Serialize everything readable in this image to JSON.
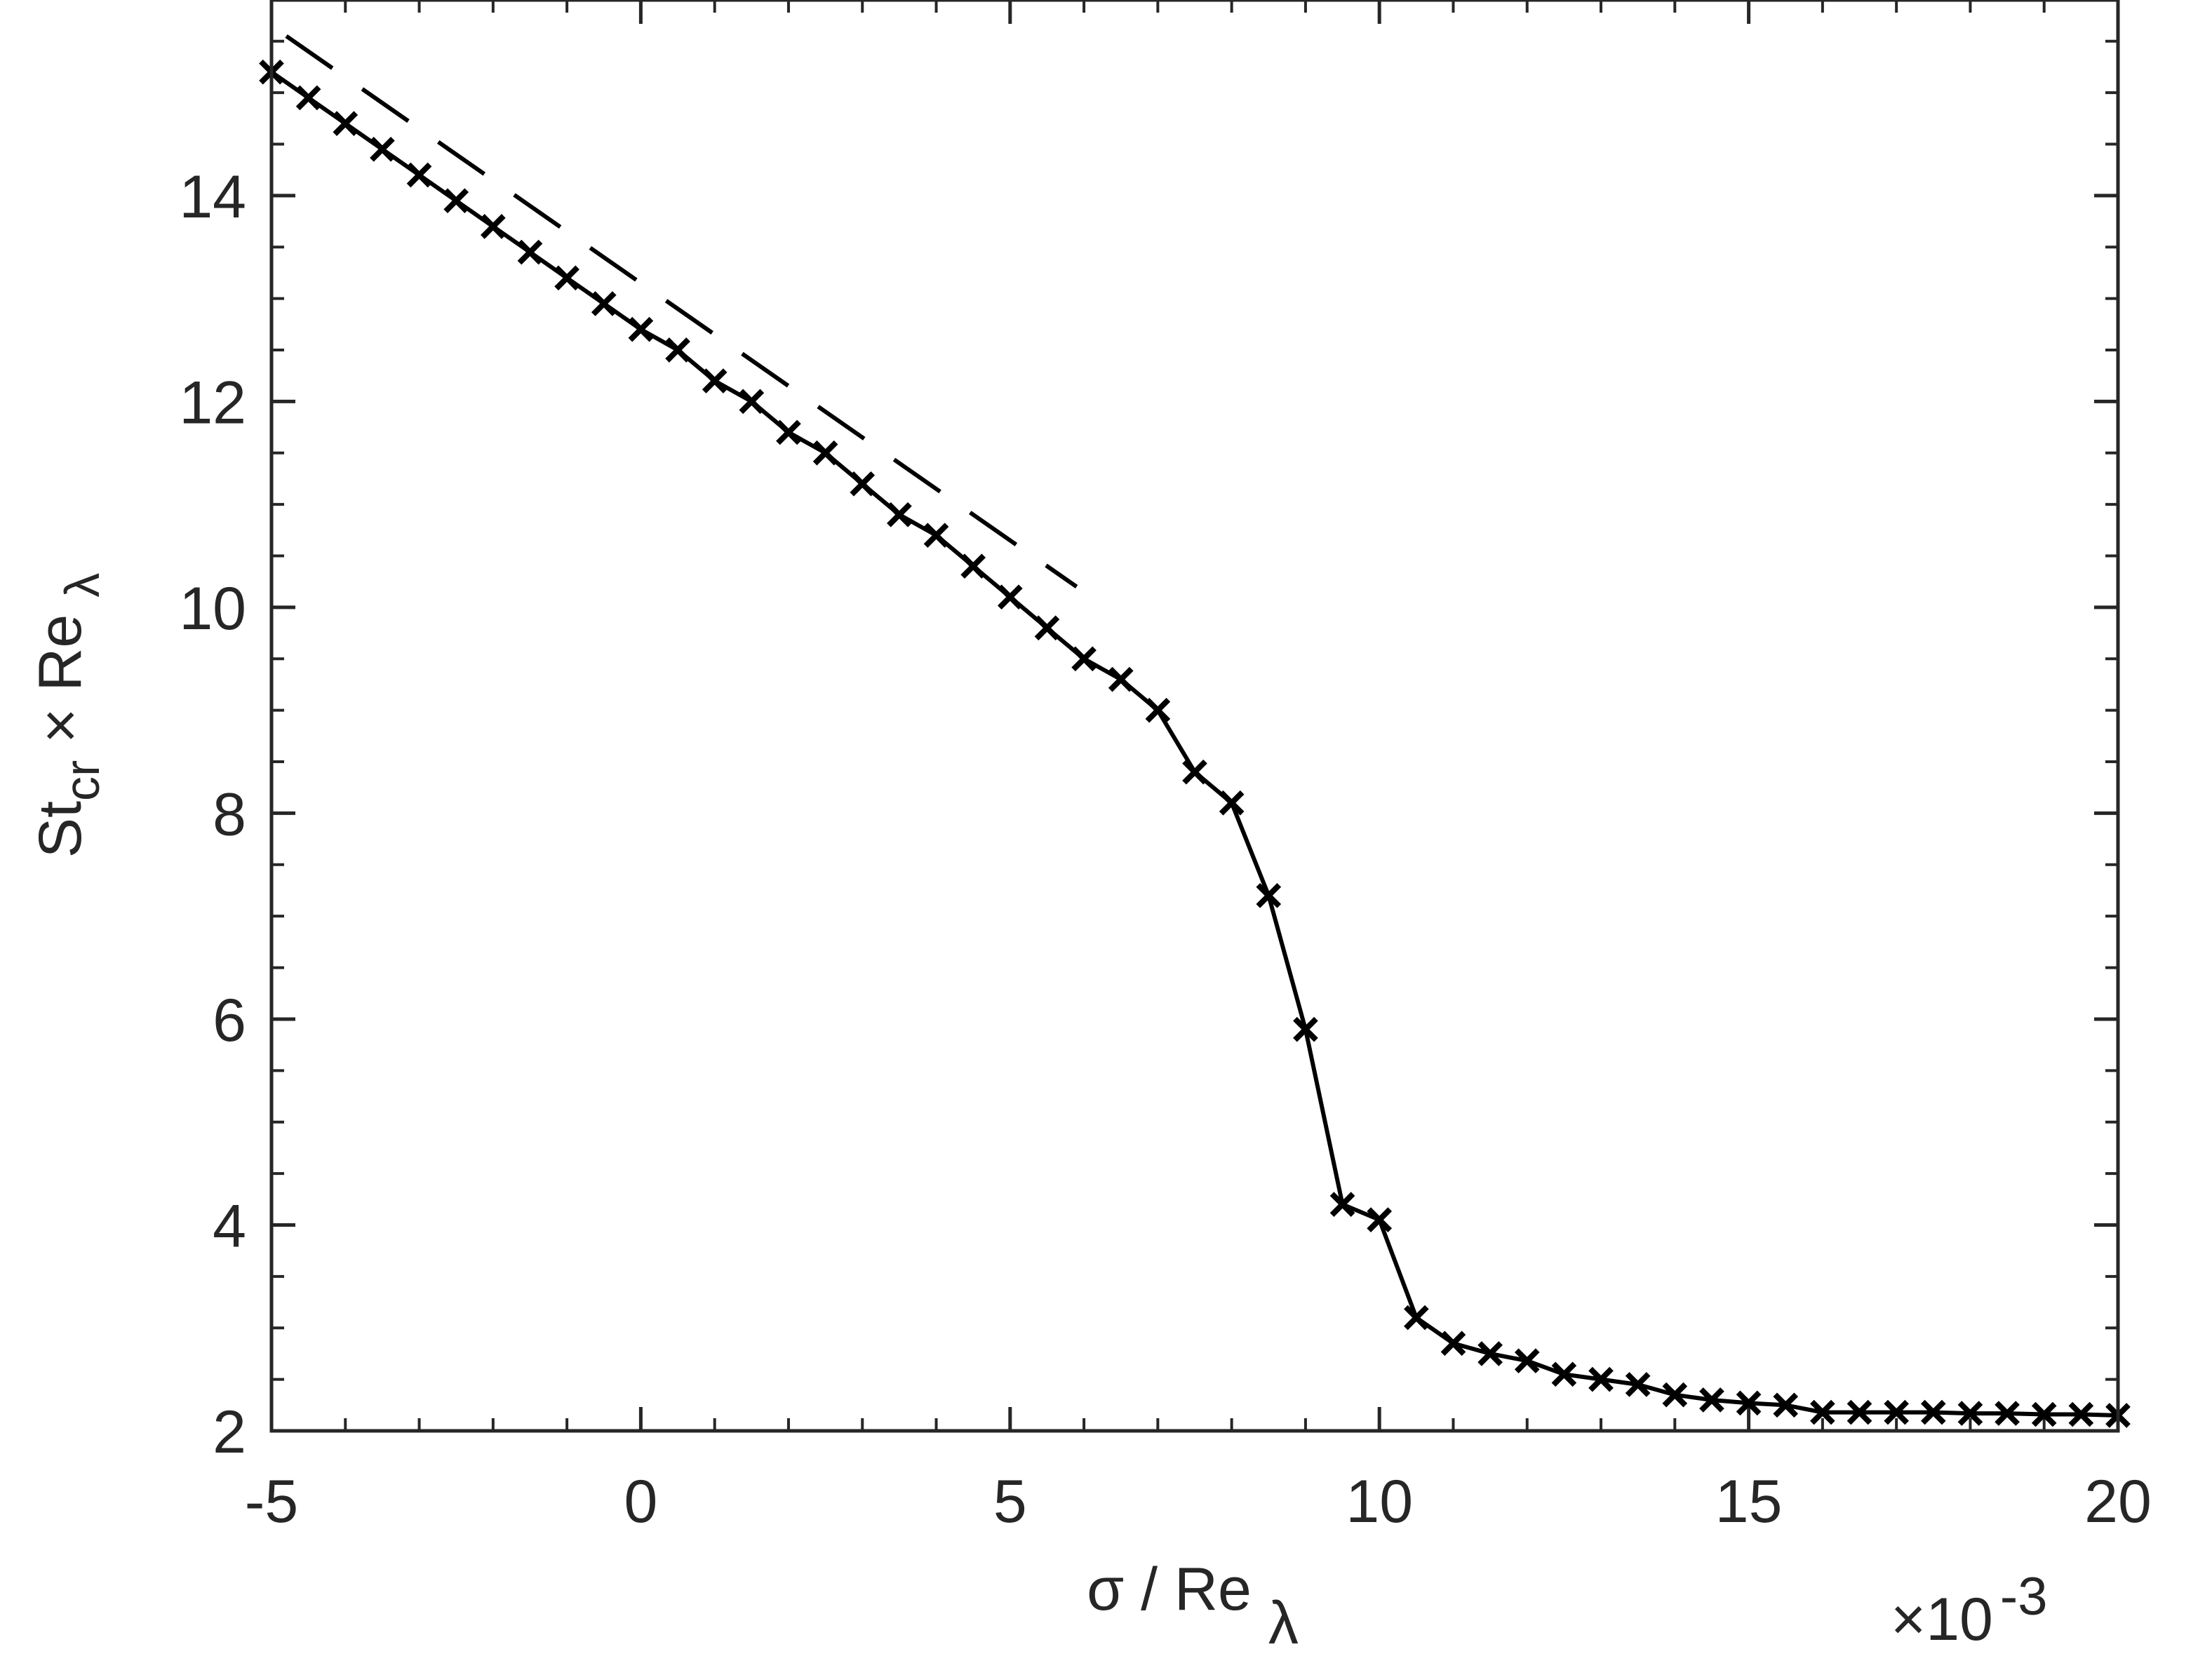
{
  "chart_data": {
    "type": "line",
    "title": "",
    "xlabel": {
      "prefix": "σ / Re",
      "subscript": "λ"
    },
    "ylabel": {
      "main": "St",
      "subscript": "cr",
      "suffix": " × Re",
      "suffix_subscript": "λ"
    },
    "x_multiplier": {
      "base": "×10",
      "exponent": "-3"
    },
    "xlim": [
      -5,
      20
    ],
    "ylim": [
      2,
      15.9
    ],
    "xticks": [
      "-5",
      "0",
      "5",
      "10",
      "15",
      "20"
    ],
    "xtick_values": [
      -5,
      0,
      5,
      10,
      15,
      20
    ],
    "yticks": [
      "2",
      "4",
      "6",
      "8",
      "10",
      "12",
      "14"
    ],
    "ytick_values": [
      2,
      4,
      6,
      8,
      10,
      12,
      14
    ],
    "grid": false,
    "colors": {
      "axis": "#262626",
      "series": "#000000"
    },
    "series": [
      {
        "style": "solid-with-x-markers",
        "x": [
          -5,
          -4.5,
          -4,
          -3.5,
          -3,
          -2.5,
          -2,
          -1.5,
          -1,
          -0.5,
          0,
          0.5,
          1,
          1.5,
          2,
          2.5,
          3,
          3.5,
          4,
          4.5,
          5,
          5.5,
          6,
          6.5,
          7,
          7.5,
          8,
          8.5,
          9,
          9.5,
          10,
          10.5,
          11,
          11.5,
          12,
          12.5,
          13,
          13.5,
          14,
          14.5,
          15,
          15.5,
          16,
          16.5,
          17,
          17.5,
          18,
          18.5,
          19,
          19.5,
          20
        ],
        "y": [
          15.2,
          14.95,
          14.7,
          14.45,
          14.2,
          13.95,
          13.7,
          13.45,
          13.2,
          12.95,
          12.7,
          12.5,
          12.2,
          12.0,
          11.7,
          11.5,
          11.2,
          10.9,
          10.7,
          10.4,
          10.1,
          9.8,
          9.5,
          9.3,
          9.0,
          8.4,
          8.1,
          7.2,
          5.9,
          4.2,
          4.05,
          3.1,
          2.85,
          2.75,
          2.68,
          2.55,
          2.5,
          2.45,
          2.35,
          2.3,
          2.27,
          2.25,
          2.18,
          2.18,
          2.18,
          2.18,
          2.17,
          2.17,
          2.16,
          2.16,
          2.15
        ]
      },
      {
        "style": "dashed",
        "x": [
          -4.8,
          5.9
        ],
        "y": [
          15.55,
          10.2
        ]
      }
    ]
  }
}
